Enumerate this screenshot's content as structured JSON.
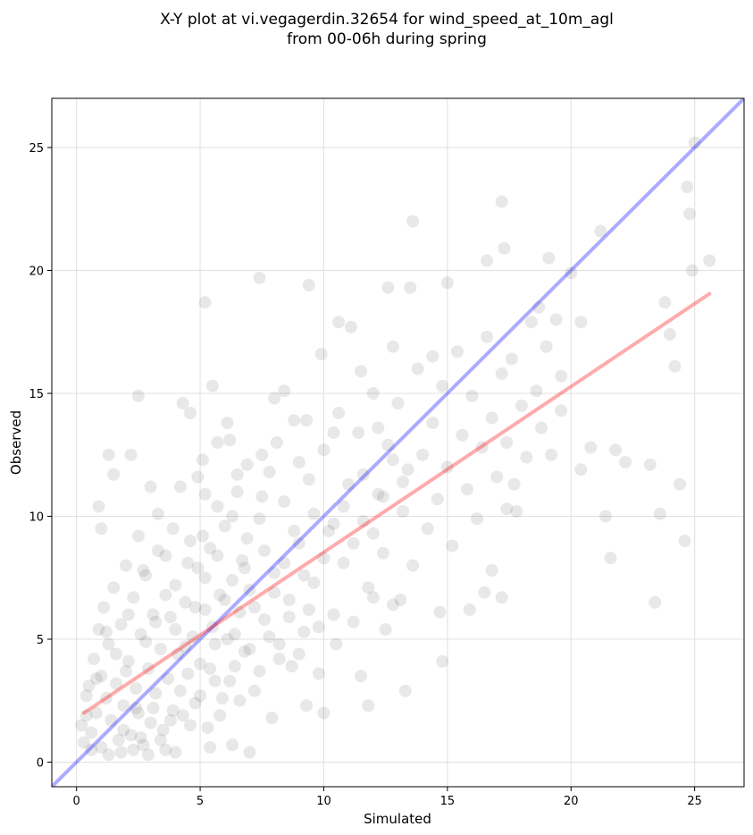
{
  "chart_data": {
    "type": "scatter",
    "title": "X-Y plot at vi.vegagerdin.32654 for wind_speed_at_10m_agl",
    "subtitle": "from 00-06h during spring",
    "xlabel": "Simulated",
    "ylabel": "Observed",
    "xlim": [
      -1,
      27
    ],
    "ylim": [
      -1,
      27
    ],
    "xticks": [
      0,
      5,
      10,
      15,
      20,
      25
    ],
    "yticks": [
      0,
      5,
      10,
      15,
      20,
      25
    ],
    "grid": true,
    "point_color": "#000000",
    "point_opacity": 0.09,
    "identity_line": {
      "x": [
        -1,
        27
      ],
      "y": [
        -1,
        27
      ],
      "color": "#0000ff"
    },
    "fit_line": {
      "x": [
        0.3,
        25.6
      ],
      "y": [
        2.0,
        19.05
      ],
      "color": "#ff0000"
    },
    "points": [
      [
        0.2,
        1.5
      ],
      [
        0.3,
        0.8
      ],
      [
        0.4,
        2.7
      ],
      [
        0.5,
        3.1
      ],
      [
        0.6,
        1.2
      ],
      [
        0.7,
        4.2
      ],
      [
        0.8,
        2.0
      ],
      [
        0.9,
        5.4
      ],
      [
        1.0,
        3.5
      ],
      [
        1.0,
        0.6
      ],
      [
        1.1,
        6.3
      ],
      [
        1.2,
        2.6
      ],
      [
        1.3,
        4.8
      ],
      [
        1.4,
        1.7
      ],
      [
        1.5,
        7.1
      ],
      [
        1.6,
        3.2
      ],
      [
        1.7,
        0.9
      ],
      [
        1.8,
        5.6
      ],
      [
        1.9,
        2.3
      ],
      [
        2.0,
        8.0
      ],
      [
        2.1,
        4.1
      ],
      [
        2.2,
        1.1
      ],
      [
        2.3,
        6.7
      ],
      [
        2.4,
        3.0
      ],
      [
        2.5,
        9.2
      ],
      [
        2.5,
        2.0
      ],
      [
        2.6,
        5.2
      ],
      [
        2.7,
        0.7
      ],
      [
        2.8,
        7.6
      ],
      [
        2.9,
        3.8
      ],
      [
        3.0,
        1.6
      ],
      [
        3.1,
        6.0
      ],
      [
        3.2,
        2.8
      ],
      [
        3.3,
        10.1
      ],
      [
        3.4,
        4.6
      ],
      [
        3.5,
        1.3
      ],
      [
        3.6,
        8.4
      ],
      [
        3.7,
        3.4
      ],
      [
        3.8,
        5.9
      ],
      [
        3.9,
        2.1
      ],
      [
        4.0,
        7.2
      ],
      [
        4.1,
        4.4
      ],
      [
        4.2,
        11.2
      ],
      [
        4.3,
        1.9
      ],
      [
        4.4,
        6.5
      ],
      [
        4.5,
        3.6
      ],
      [
        4.6,
        9.0
      ],
      [
        4.7,
        5.1
      ],
      [
        4.8,
        2.4
      ],
      [
        4.9,
        7.9
      ],
      [
        5.0,
        4.0
      ],
      [
        5.1,
        12.3
      ],
      [
        5.2,
        6.2
      ],
      [
        5.3,
        1.4
      ],
      [
        5.4,
        8.7
      ],
      [
        5.5,
        5.5
      ],
      [
        5.6,
        3.3
      ],
      [
        5.7,
        10.4
      ],
      [
        5.8,
        6.8
      ],
      [
        5.9,
        2.6
      ],
      [
        6.0,
        9.6
      ],
      [
        6.1,
        5.0
      ],
      [
        6.2,
        13.1
      ],
      [
        6.3,
        7.4
      ],
      [
        6.4,
        3.9
      ],
      [
        6.5,
        11.0
      ],
      [
        6.6,
        6.1
      ],
      [
        6.7,
        8.2
      ],
      [
        6.8,
        4.5
      ],
      [
        6.9,
        12.1
      ],
      [
        7.0,
        7.0
      ],
      [
        7.2,
        2.9
      ],
      [
        7.4,
        9.9
      ],
      [
        7.6,
        5.8
      ],
      [
        7.8,
        11.8
      ],
      [
        8.0,
        7.7
      ],
      [
        8.2,
        4.2
      ],
      [
        8.4,
        10.6
      ],
      [
        8.6,
        6.6
      ],
      [
        8.8,
        13.9
      ],
      [
        9.0,
        8.9
      ],
      [
        9.2,
        5.3
      ],
      [
        9.4,
        11.5
      ],
      [
        9.6,
        7.3
      ],
      [
        9.8,
        3.6
      ],
      [
        10.0,
        12.7
      ],
      [
        10.2,
        9.4
      ],
      [
        10.4,
        6.0
      ],
      [
        10.6,
        14.2
      ],
      [
        10.8,
        8.1
      ],
      [
        11.0,
        11.3
      ],
      [
        11.2,
        5.7
      ],
      [
        11.4,
        13.4
      ],
      [
        11.6,
        9.8
      ],
      [
        11.8,
        7.1
      ],
      [
        12.0,
        15.0
      ],
      [
        12.2,
        10.9
      ],
      [
        12.4,
        8.5
      ],
      [
        12.6,
        12.9
      ],
      [
        12.8,
        6.4
      ],
      [
        13.0,
        14.6
      ],
      [
        13.2,
        10.2
      ],
      [
        13.4,
        11.9
      ],
      [
        13.6,
        8.0
      ],
      [
        13.8,
        16.0
      ],
      [
        14.0,
        12.5
      ],
      [
        14.2,
        9.5
      ],
      [
        14.4,
        13.8
      ],
      [
        14.6,
        10.7
      ],
      [
        14.8,
        15.3
      ],
      [
        15.0,
        12.0
      ],
      [
        15.2,
        8.8
      ],
      [
        15.4,
        16.7
      ],
      [
        15.6,
        13.3
      ],
      [
        15.8,
        11.1
      ],
      [
        16.0,
        14.9
      ],
      [
        16.2,
        9.9
      ],
      [
        16.4,
        12.8
      ],
      [
        16.6,
        17.3
      ],
      [
        16.8,
        14.0
      ],
      [
        17.0,
        11.6
      ],
      [
        17.2,
        15.8
      ],
      [
        17.4,
        13.0
      ],
      [
        17.6,
        16.4
      ],
      [
        17.8,
        10.2
      ],
      [
        18.0,
        14.5
      ],
      [
        18.2,
        12.4
      ],
      [
        18.4,
        17.9
      ],
      [
        18.6,
        15.1
      ],
      [
        18.8,
        13.6
      ],
      [
        19.0,
        16.9
      ],
      [
        19.2,
        12.5
      ],
      [
        19.4,
        18.0
      ],
      [
        19.6,
        14.3
      ],
      [
        20.0,
        19.9
      ],
      [
        20.4,
        11.9
      ],
      [
        20.8,
        12.8
      ],
      [
        21.2,
        21.6
      ],
      [
        21.4,
        10.0
      ],
      [
        21.6,
        8.3
      ],
      [
        21.8,
        12.7
      ],
      [
        22.2,
        12.2
      ],
      [
        23.2,
        12.1
      ],
      [
        23.4,
        6.5
      ],
      [
        23.6,
        10.1
      ],
      [
        23.8,
        18.7
      ],
      [
        24.0,
        17.4
      ],
      [
        24.2,
        16.1
      ],
      [
        24.4,
        11.3
      ],
      [
        24.6,
        9.0
      ],
      [
        24.7,
        23.4
      ],
      [
        24.8,
        22.3
      ],
      [
        24.9,
        20.0
      ],
      [
        25.0,
        25.2
      ],
      [
        25.6,
        20.4
      ],
      [
        17.2,
        22.8
      ],
      [
        13.6,
        22.0
      ],
      [
        19.1,
        20.5
      ],
      [
        16.6,
        20.4
      ],
      [
        7.4,
        19.7
      ],
      [
        9.4,
        19.4
      ],
      [
        12.6,
        19.3
      ],
      [
        13.5,
        19.3
      ],
      [
        15.0,
        19.5
      ],
      [
        5.2,
        18.7
      ],
      [
        10.6,
        17.9
      ],
      [
        11.1,
        17.7
      ],
      [
        12.8,
        16.9
      ],
      [
        14.4,
        16.5
      ],
      [
        9.9,
        16.6
      ],
      [
        17.3,
        20.9
      ],
      [
        18.7,
        18.5
      ],
      [
        20.4,
        17.9
      ],
      [
        19.6,
        15.7
      ],
      [
        8.0,
        14.8
      ],
      [
        8.4,
        15.1
      ],
      [
        5.5,
        15.3
      ],
      [
        2.5,
        14.9
      ],
      [
        4.3,
        14.6
      ],
      [
        4.6,
        14.2
      ],
      [
        6.1,
        13.8
      ],
      [
        5.7,
        13.0
      ],
      [
        2.2,
        12.5
      ],
      [
        1.3,
        12.5
      ],
      [
        1.5,
        11.7
      ],
      [
        0.9,
        10.4
      ],
      [
        1.0,
        9.5
      ],
      [
        3.0,
        11.2
      ],
      [
        4.9,
        11.6
      ],
      [
        5.2,
        10.9
      ],
      [
        6.5,
        11.7
      ],
      [
        7.5,
        12.5
      ],
      [
        8.1,
        13.0
      ],
      [
        9.0,
        12.2
      ],
      [
        9.3,
        13.9
      ],
      [
        10.4,
        13.4
      ],
      [
        11.5,
        15.9
      ],
      [
        12.2,
        13.6
      ],
      [
        12.0,
        6.7
      ],
      [
        12.5,
        5.4
      ],
      [
        13.1,
        6.6
      ],
      [
        13.3,
        2.9
      ],
      [
        14.7,
        6.1
      ],
      [
        14.8,
        4.1
      ],
      [
        15.9,
        6.2
      ],
      [
        16.5,
        6.9
      ],
      [
        16.8,
        7.8
      ],
      [
        17.2,
        6.7
      ],
      [
        17.4,
        10.3
      ],
      [
        17.7,
        11.3
      ],
      [
        11.8,
        2.3
      ],
      [
        11.5,
        3.5
      ],
      [
        10.5,
        4.8
      ],
      [
        10.0,
        2.0
      ],
      [
        9.3,
        2.3
      ],
      [
        8.7,
        3.9
      ],
      [
        7.9,
        1.8
      ],
      [
        7.0,
        0.4
      ],
      [
        6.3,
        0.7
      ],
      [
        5.4,
        0.6
      ],
      [
        4.0,
        0.4
      ],
      [
        3.6,
        0.5
      ],
      [
        2.9,
        0.3
      ],
      [
        2.3,
        0.5
      ],
      [
        1.8,
        0.4
      ],
      [
        1.3,
        0.3
      ],
      [
        0.6,
        0.5
      ],
      [
        0.4,
        1.9
      ],
      [
        0.8,
        3.4
      ],
      [
        1.2,
        5.3
      ],
      [
        1.6,
        4.4
      ],
      [
        2.0,
        3.7
      ],
      [
        2.4,
        2.2
      ],
      [
        2.8,
        4.9
      ],
      [
        3.2,
        5.7
      ],
      [
        3.6,
        6.8
      ],
      [
        4.0,
        5.4
      ],
      [
        4.4,
        4.7
      ],
      [
        4.8,
        6.3
      ],
      [
        5.2,
        7.5
      ],
      [
        5.6,
        4.8
      ],
      [
        6.0,
        6.6
      ],
      [
        6.4,
        5.2
      ],
      [
        6.8,
        7.9
      ],
      [
        7.2,
        6.3
      ],
      [
        7.6,
        8.6
      ],
      [
        8.0,
        6.9
      ],
      [
        8.4,
        8.1
      ],
      [
        8.8,
        9.4
      ],
      [
        9.2,
        7.6
      ],
      [
        9.6,
        10.1
      ],
      [
        10.0,
        8.3
      ],
      [
        10.4,
        9.7
      ],
      [
        10.8,
        10.4
      ],
      [
        11.2,
        8.9
      ],
      [
        11.6,
        11.7
      ],
      [
        12.0,
        9.3
      ],
      [
        12.4,
        10.8
      ],
      [
        12.8,
        12.3
      ],
      [
        13.2,
        11.4
      ],
      [
        1.9,
        1.3
      ],
      [
        2.6,
        1.0
      ],
      [
        3.1,
        2.2
      ],
      [
        3.4,
        0.9
      ],
      [
        3.8,
        1.7
      ],
      [
        4.2,
        2.9
      ],
      [
        4.6,
        1.5
      ],
      [
        5.0,
        2.7
      ],
      [
        5.4,
        3.8
      ],
      [
        5.8,
        1.9
      ],
      [
        6.2,
        3.3
      ],
      [
        6.6,
        2.5
      ],
      [
        7.0,
        4.6
      ],
      [
        7.4,
        3.7
      ],
      [
        7.8,
        5.1
      ],
      [
        8.2,
        4.8
      ],
      [
        8.6,
        5.9
      ],
      [
        9.0,
        4.4
      ],
      [
        9.4,
        6.2
      ],
      [
        9.8,
        5.5
      ],
      [
        2.1,
        6.0
      ],
      [
        2.7,
        7.8
      ],
      [
        3.3,
        8.6
      ],
      [
        3.9,
        9.5
      ],
      [
        4.5,
        8.1
      ],
      [
        5.1,
        9.2
      ],
      [
        5.7,
        8.4
      ],
      [
        6.3,
        10.0
      ],
      [
        6.9,
        9.1
      ],
      [
        7.5,
        10.8
      ]
    ]
  }
}
